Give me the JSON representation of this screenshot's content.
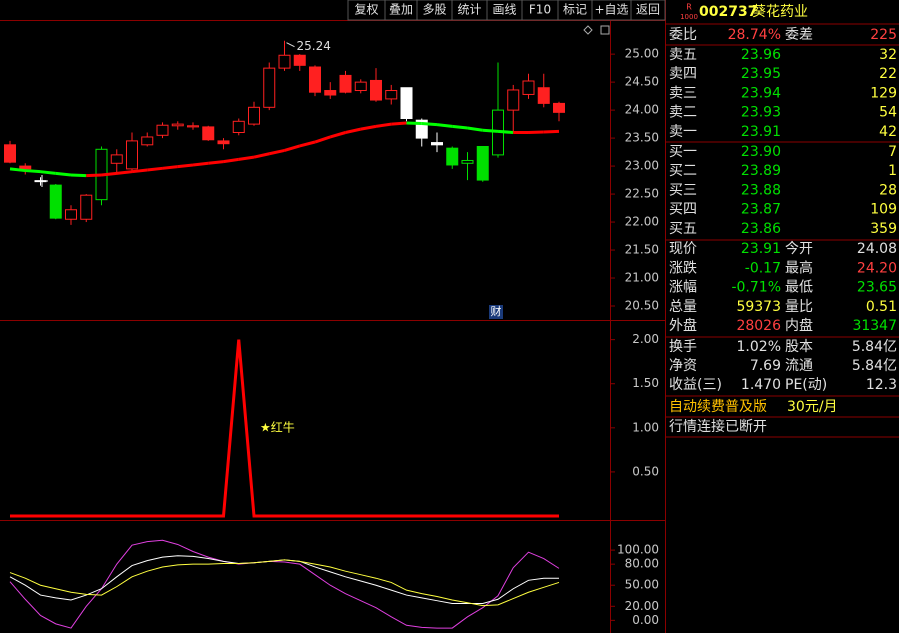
{
  "toolbar": [
    "复权",
    "叠加",
    "多股",
    "统计",
    "画线",
    "F10",
    "标记",
    "+自选",
    "返回"
  ],
  "main_chart": {
    "type": "candlestick",
    "ylim": [
      20.25,
      25.61
    ],
    "yticks": [
      {
        "value": 25,
        "label": "25.00"
      },
      {
        "value": 24.5,
        "label": "24.50"
      },
      {
        "value": 24,
        "label": "24.00"
      },
      {
        "value": 23.5,
        "label": "23.50"
      },
      {
        "value": 23,
        "label": "23.00"
      },
      {
        "value": 22.5,
        "label": "22.50"
      },
      {
        "value": 22,
        "label": "22.00"
      },
      {
        "value": 21.5,
        "label": "21.50"
      },
      {
        "value": 21,
        "label": "21.00"
      },
      {
        "value": 20.5,
        "label": "20.50"
      }
    ],
    "max_price": 25.24,
    "marker": "财",
    "open": [
      23.38,
      23.0,
      22.73,
      22.66,
      22.05,
      22.05,
      22.4,
      23.05,
      22.95,
      23.38,
      23.55,
      23.72,
      23.7,
      23.7,
      23.45,
      23.6,
      23.75,
      24.05,
      24.75,
      24.98,
      24.77,
      24.35,
      24.62,
      24.35,
      24.53,
      24.2,
      24.4,
      23.82,
      23.42,
      23.32,
      23.05,
      23.35,
      23.2,
      24.0,
      24.28,
      24.4,
      24.12
    ],
    "close": [
      23.07,
      22.95,
      22.74,
      22.07,
      22.22,
      22.48,
      23.3,
      23.2,
      23.45,
      23.52,
      23.73,
      23.75,
      23.72,
      23.47,
      23.4,
      23.8,
      24.05,
      24.75,
      24.98,
      24.8,
      24.32,
      24.27,
      24.32,
      24.5,
      24.18,
      24.35,
      23.85,
      23.5,
      23.38,
      23.02,
      23.1,
      22.75,
      24.0,
      24.36,
      24.52,
      24.12,
      23.96
    ],
    "high": [
      23.45,
      23.05,
      22.8,
      22.68,
      22.3,
      22.5,
      23.35,
      23.3,
      23.6,
      23.6,
      23.78,
      23.8,
      23.78,
      23.72,
      23.5,
      23.85,
      24.15,
      24.85,
      25.24,
      25.0,
      24.8,
      24.5,
      24.7,
      24.55,
      24.75,
      24.45,
      24.4,
      23.85,
      23.6,
      23.35,
      23.25,
      23.35,
      24.85,
      24.45,
      24.65,
      24.65,
      24.15
    ],
    "low": [
      23.05,
      22.85,
      22.65,
      22.05,
      21.95,
      22.0,
      22.3,
      22.85,
      22.9,
      23.35,
      23.5,
      23.65,
      23.65,
      23.45,
      23.3,
      23.55,
      23.72,
      24.0,
      24.7,
      24.7,
      24.25,
      24.2,
      24.3,
      24.3,
      24.15,
      24.1,
      23.8,
      23.35,
      23.25,
      22.95,
      22.75,
      22.72,
      23.15,
      23.6,
      24.2,
      24.05,
      23.8
    ],
    "colors": [
      "#ff2020",
      "#ff2020",
      "#ffffff",
      "#00e000",
      "#ff2020",
      "#ff2020",
      "#00e000",
      "#ff2020",
      "#ff2020",
      "#ff2020",
      "#ff2020",
      "#ff2020",
      "#ff2020",
      "#ff2020",
      "#ff2020",
      "#ff2020",
      "#ff2020",
      "#ff2020",
      "#ff2020",
      "#ff2020",
      "#ff2020",
      "#ff2020",
      "#ff2020",
      "#ff2020",
      "#ff2020",
      "#ff2020",
      "#ffffff",
      "#ffffff",
      "#ffffff",
      "#00e000",
      "#00e000",
      "#00e000",
      "#00e000",
      "#ff2020",
      "#ff2020",
      "#ff2020",
      "#ff2020"
    ],
    "ma": {
      "values": [
        22.95,
        22.92,
        22.9,
        22.87,
        22.84,
        22.83,
        22.84,
        22.87,
        22.9,
        22.93,
        22.96,
        22.99,
        23.02,
        23.05,
        23.08,
        23.12,
        23.16,
        23.22,
        23.28,
        23.36,
        23.43,
        23.52,
        23.6,
        23.66,
        23.71,
        23.75,
        23.77,
        23.76,
        23.74,
        23.71,
        23.68,
        23.64,
        23.62,
        23.6,
        23.6,
        23.61,
        23.62
      ],
      "up_color": "#ff0000",
      "down_color": "#00ff00"
    }
  },
  "signal_chart": {
    "type": "line",
    "ylim": [
      0,
      2.2
    ],
    "yticks": [
      {
        "value": 2,
        "label": "2.00"
      },
      {
        "value": 1.5,
        "label": "1.50"
      },
      {
        "value": 1,
        "label": "1.00"
      },
      {
        "value": 0.5,
        "label": "0.50"
      }
    ],
    "values": [
      0,
      0,
      0,
      0,
      0,
      0,
      0,
      0,
      0,
      0,
      0,
      0,
      0,
      0,
      0,
      2,
      0,
      0,
      0,
      0,
      0,
      0,
      0,
      0,
      0,
      0,
      0,
      0,
      0,
      0,
      0,
      0,
      0,
      0,
      0,
      0,
      0
    ],
    "color": "#ff0000",
    "annotation": "★红牛"
  },
  "kdj_chart": {
    "type": "line",
    "ylim": [
      -18,
      140
    ],
    "yticks": [
      {
        "value": 100,
        "label": "100.00"
      },
      {
        "value": 80,
        "label": "80.00"
      },
      {
        "value": 50,
        "label": "50.00"
      },
      {
        "value": 20,
        "label": "20.00"
      },
      {
        "value": 0,
        "label": "0.00"
      }
    ],
    "series": [
      {
        "color": "#e040e0",
        "values": [
          55,
          30,
          7,
          -5,
          -11,
          20,
          45,
          80,
          107,
          112,
          114,
          108,
          98,
          90,
          84,
          80,
          82,
          84,
          83,
          80,
          65,
          50,
          38,
          28,
          18,
          5,
          -7,
          -10,
          -11,
          -11,
          5,
          18,
          35,
          75,
          97,
          88,
          74
        ]
      },
      {
        "color": "#ffffff",
        "values": [
          62,
          50,
          36,
          32,
          29,
          36,
          45,
          62,
          78,
          85,
          90,
          92,
          91,
          88,
          84,
          81,
          82,
          84,
          86,
          84,
          76,
          69,
          62,
          56,
          50,
          43,
          36,
          32,
          28,
          24,
          24,
          24,
          30,
          45,
          57,
          60,
          60
        ]
      },
      {
        "color": "#ffff40",
        "values": [
          68,
          60,
          50,
          45,
          40,
          37,
          36,
          48,
          62,
          70,
          76,
          79,
          80,
          80,
          81,
          81,
          82,
          84,
          86,
          84,
          80,
          76,
          70,
          65,
          60,
          54,
          43,
          38,
          34,
          29,
          25,
          21,
          22,
          31,
          40,
          47,
          54
        ]
      }
    ]
  },
  "quote": {
    "badge_top": "R",
    "badge_bottom": "1000",
    "code": "002737",
    "name": "葵花药业",
    "ratio_row": [
      "委比",
      "28.74%",
      "委差",
      "225"
    ],
    "asks": [
      [
        "卖五",
        "23.96",
        "32"
      ],
      [
        "卖四",
        "23.95",
        "22"
      ],
      [
        "卖三",
        "23.94",
        "129"
      ],
      [
        "卖二",
        "23.93",
        "54"
      ],
      [
        "卖一",
        "23.91",
        "42"
      ]
    ],
    "bids": [
      [
        "买一",
        "23.90",
        "7"
      ],
      [
        "买二",
        "23.89",
        "1"
      ],
      [
        "买三",
        "23.88",
        "28"
      ],
      [
        "买四",
        "23.87",
        "109"
      ],
      [
        "买五",
        "23.86",
        "359"
      ]
    ],
    "stats": [
      [
        "现价",
        "23.91",
        "今开",
        "24.08"
      ],
      [
        "涨跌",
        "-0.17",
        "最高",
        "24.20"
      ],
      [
        "涨幅",
        "-0.71%",
        "最低",
        "23.65"
      ],
      [
        "总量",
        "59373",
        "量比",
        "0.51"
      ],
      [
        "外盘",
        "28026",
        "内盘",
        "31347"
      ]
    ],
    "fundamentals": [
      [
        "换手",
        "1.02%",
        "股本",
        "5.84亿"
      ],
      [
        "净资",
        "7.69",
        "流通",
        "5.84亿"
      ],
      [
        "收益(三)",
        "1.470",
        "PE(动)",
        "12.3"
      ]
    ],
    "promo": "自动续费普及版",
    "promo_price": "30元/月",
    "status": "行情连接已断开"
  }
}
